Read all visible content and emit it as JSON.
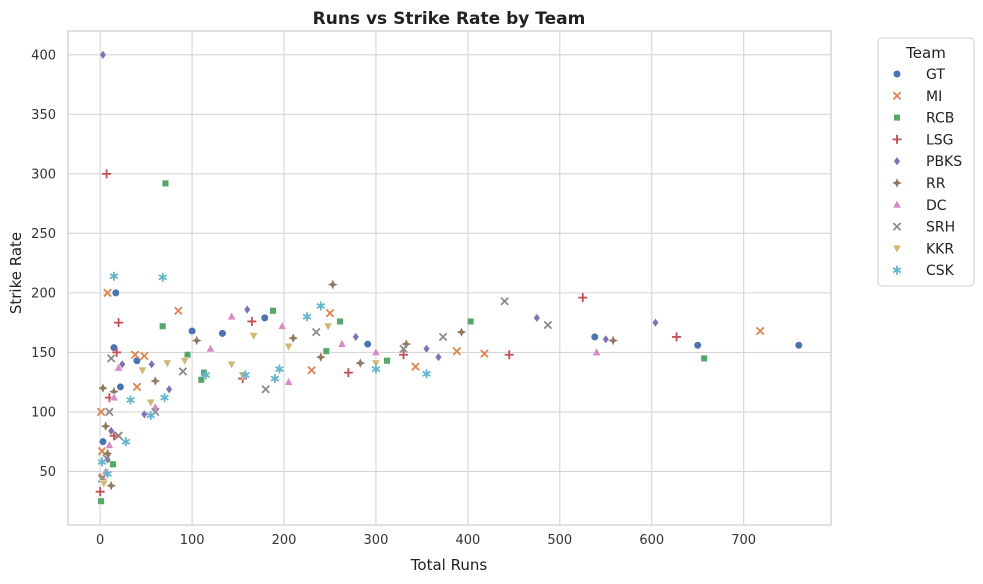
{
  "chart_data": {
    "type": "scatter",
    "title": "Runs vs Strike Rate by Team",
    "xlabel": "Total Runs",
    "ylabel": "Strike Rate",
    "xlim": [
      -35,
      795
    ],
    "ylim": [
      5,
      420
    ],
    "xticks": [
      0,
      100,
      200,
      300,
      400,
      500,
      600,
      700
    ],
    "yticks": [
      50,
      100,
      150,
      200,
      250,
      300,
      350,
      400
    ],
    "grid": true,
    "legend": {
      "title": "Team",
      "placement": "outside-right"
    },
    "series": [
      {
        "name": "GT",
        "color": "#4c72b0",
        "marker": "circle",
        "points": [
          [
            3,
            75
          ],
          [
            15,
            154
          ],
          [
            17,
            200
          ],
          [
            22,
            121
          ],
          [
            40,
            143
          ],
          [
            100,
            168
          ],
          [
            133,
            166
          ],
          [
            179,
            179
          ],
          [
            291,
            157
          ],
          [
            538,
            163
          ],
          [
            650,
            156
          ],
          [
            760,
            156
          ]
        ]
      },
      {
        "name": "MI",
        "color": "#dd8452",
        "marker": "x",
        "points": [
          [
            1,
            100
          ],
          [
            2,
            67
          ],
          [
            3,
            45
          ],
          [
            8,
            200
          ],
          [
            20,
            80
          ],
          [
            38,
            148
          ],
          [
            40,
            121
          ],
          [
            48,
            147
          ],
          [
            85,
            185
          ],
          [
            230,
            135
          ],
          [
            250,
            183
          ],
          [
            343,
            138
          ],
          [
            388,
            151
          ],
          [
            418,
            149
          ],
          [
            718,
            168
          ]
        ]
      },
      {
        "name": "RCB",
        "color": "#55a868",
        "marker": "square",
        "points": [
          [
            1,
            25
          ],
          [
            14,
            56
          ],
          [
            68,
            172
          ],
          [
            71,
            292
          ],
          [
            95,
            148
          ],
          [
            110,
            127
          ],
          [
            113,
            133
          ],
          [
            188,
            185
          ],
          [
            246,
            151
          ],
          [
            261,
            176
          ],
          [
            312,
            143
          ],
          [
            403,
            176
          ],
          [
            657,
            145
          ]
        ]
      },
      {
        "name": "LSG",
        "color": "#c44e52",
        "marker": "plus",
        "points": [
          [
            0,
            33
          ],
          [
            7,
            300
          ],
          [
            10,
            112
          ],
          [
            15,
            80
          ],
          [
            18,
            150
          ],
          [
            20,
            175
          ],
          [
            155,
            128
          ],
          [
            165,
            176
          ],
          [
            270,
            133
          ],
          [
            330,
            148
          ],
          [
            445,
            148
          ],
          [
            525,
            196
          ],
          [
            627,
            163
          ]
        ]
      },
      {
        "name": "PBKS",
        "color": "#8172b3",
        "marker": "diamond",
        "points": [
          [
            3,
            400
          ],
          [
            8,
            60
          ],
          [
            12,
            84
          ],
          [
            24,
            140
          ],
          [
            48,
            98
          ],
          [
            56,
            140
          ],
          [
            75,
            119
          ],
          [
            160,
            186
          ],
          [
            278,
            163
          ],
          [
            355,
            153
          ],
          [
            368,
            146
          ],
          [
            475,
            179
          ],
          [
            550,
            161
          ],
          [
            604,
            175
          ]
        ]
      },
      {
        "name": "RR",
        "color": "#937860",
        "marker": "star",
        "points": [
          [
            3,
            120
          ],
          [
            6,
            88
          ],
          [
            8,
            65
          ],
          [
            12,
            38
          ],
          [
            15,
            117
          ],
          [
            60,
            126
          ],
          [
            105,
            160
          ],
          [
            210,
            162
          ],
          [
            240,
            146
          ],
          [
            253,
            207
          ],
          [
            283,
            141
          ],
          [
            333,
            157
          ],
          [
            393,
            167
          ],
          [
            558,
            160
          ]
        ]
      },
      {
        "name": "DC",
        "color": "#da8bc3",
        "marker": "triangle-up",
        "points": [
          [
            6,
            50
          ],
          [
            10,
            72
          ],
          [
            15,
            112
          ],
          [
            20,
            137
          ],
          [
            60,
            104
          ],
          [
            120,
            153
          ],
          [
            143,
            180
          ],
          [
            198,
            172
          ],
          [
            205,
            125
          ],
          [
            263,
            157
          ],
          [
            300,
            150
          ],
          [
            540,
            150
          ]
        ]
      },
      {
        "name": "SRH",
        "color": "#8c8c8c",
        "marker": "x",
        "points": [
          [
            2,
            44
          ],
          [
            7,
            61
          ],
          [
            10,
            100
          ],
          [
            12,
            145
          ],
          [
            20,
            80
          ],
          [
            60,
            100
          ],
          [
            90,
            134
          ],
          [
            180,
            119
          ],
          [
            235,
            167
          ],
          [
            330,
            153
          ],
          [
            373,
            163
          ],
          [
            440,
            193
          ],
          [
            487,
            173
          ]
        ]
      },
      {
        "name": "KKR",
        "color": "#ccb974",
        "marker": "triangle-down",
        "points": [
          [
            4,
            40
          ],
          [
            46,
            135
          ],
          [
            55,
            108
          ],
          [
            73,
            141
          ],
          [
            92,
            143
          ],
          [
            143,
            140
          ],
          [
            155,
            131
          ],
          [
            167,
            164
          ],
          [
            205,
            155
          ],
          [
            248,
            172
          ],
          [
            300,
            141
          ]
        ]
      },
      {
        "name": "CSK",
        "color": "#64b5cd",
        "marker": "asterisk",
        "points": [
          [
            2,
            58
          ],
          [
            8,
            48
          ],
          [
            15,
            214
          ],
          [
            28,
            75
          ],
          [
            33,
            110
          ],
          [
            55,
            97
          ],
          [
            68,
            213
          ],
          [
            70,
            112
          ],
          [
            115,
            131
          ],
          [
            158,
            131
          ],
          [
            190,
            128
          ],
          [
            195,
            136
          ],
          [
            225,
            180
          ],
          [
            240,
            189
          ],
          [
            300,
            136
          ],
          [
            355,
            132
          ]
        ]
      }
    ]
  }
}
